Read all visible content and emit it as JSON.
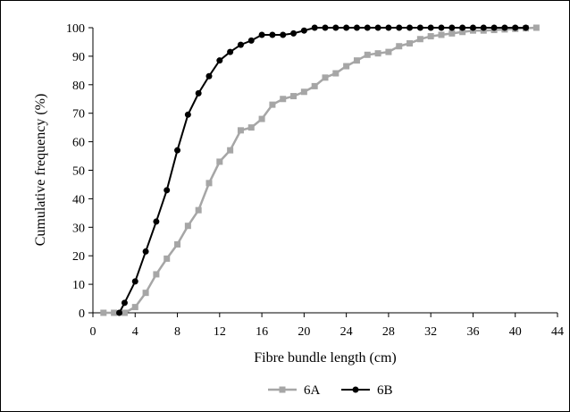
{
  "chart_data": {
    "type": "line",
    "title": "",
    "xlabel": "Fibre bundle length (cm)",
    "ylabel": "Cumulative frequency (%)",
    "xlim": [
      0,
      44
    ],
    "ylim": [
      0,
      100
    ],
    "xticks": [
      0,
      4,
      8,
      12,
      16,
      20,
      24,
      28,
      32,
      36,
      40,
      44
    ],
    "yticks": [
      0,
      10,
      20,
      30,
      40,
      50,
      60,
      70,
      80,
      90,
      100
    ],
    "grid": false,
    "legend_position": "bottom-center",
    "series": [
      {
        "name": "6A",
        "color": "#a6a6a6",
        "marker": "square",
        "points": [
          [
            1,
            0
          ],
          [
            2,
            0
          ],
          [
            3,
            0
          ],
          [
            4,
            2
          ],
          [
            5,
            7
          ],
          [
            6,
            13.5
          ],
          [
            7,
            19
          ],
          [
            8,
            24
          ],
          [
            9,
            30.5
          ],
          [
            10,
            36
          ],
          [
            11,
            45.5
          ],
          [
            12,
            53
          ],
          [
            13,
            57
          ],
          [
            14,
            64
          ],
          [
            15,
            65
          ],
          [
            16,
            68
          ],
          [
            17,
            73
          ],
          [
            18,
            75
          ],
          [
            19,
            76
          ],
          [
            20,
            77.5
          ],
          [
            21,
            79.5
          ],
          [
            22,
            82.5
          ],
          [
            23,
            84
          ],
          [
            24,
            86.5
          ],
          [
            25,
            88.5
          ],
          [
            26,
            90.5
          ],
          [
            27,
            91
          ],
          [
            28,
            91.5
          ],
          [
            29,
            93.5
          ],
          [
            30,
            94.5
          ],
          [
            31,
            96
          ],
          [
            32,
            97
          ],
          [
            33,
            97.5
          ],
          [
            34,
            98
          ],
          [
            35,
            98.5
          ],
          [
            36,
            99
          ],
          [
            37,
            99
          ],
          [
            38,
            99.2
          ],
          [
            39,
            99.4
          ],
          [
            40,
            99.6
          ],
          [
            41,
            99.8
          ],
          [
            42,
            100
          ]
        ]
      },
      {
        "name": "6B",
        "color": "#000000",
        "marker": "circle",
        "points": [
          [
            2.5,
            0
          ],
          [
            3,
            3.5
          ],
          [
            4,
            11
          ],
          [
            5,
            21.5
          ],
          [
            6,
            32
          ],
          [
            7,
            43
          ],
          [
            8,
            57
          ],
          [
            9,
            69.5
          ],
          [
            10,
            77
          ],
          [
            11,
            83
          ],
          [
            12,
            88.5
          ],
          [
            13,
            91.5
          ],
          [
            14,
            94
          ],
          [
            15,
            95.5
          ],
          [
            16,
            97.5
          ],
          [
            17,
            97.5
          ],
          [
            18,
            97.5
          ],
          [
            19,
            98
          ],
          [
            20,
            99
          ],
          [
            21,
            100
          ],
          [
            22,
            100
          ],
          [
            23,
            100
          ],
          [
            24,
            100
          ],
          [
            25,
            100
          ],
          [
            26,
            100
          ],
          [
            27,
            100
          ],
          [
            28,
            100
          ],
          [
            29,
            100
          ],
          [
            30,
            100
          ],
          [
            31,
            100
          ],
          [
            32,
            100
          ],
          [
            33,
            100
          ],
          [
            34,
            100
          ],
          [
            35,
            100
          ],
          [
            36,
            100
          ],
          [
            37,
            100
          ],
          [
            38,
            100
          ],
          [
            39,
            100
          ],
          [
            40,
            100
          ],
          [
            41,
            100
          ]
        ]
      }
    ]
  }
}
